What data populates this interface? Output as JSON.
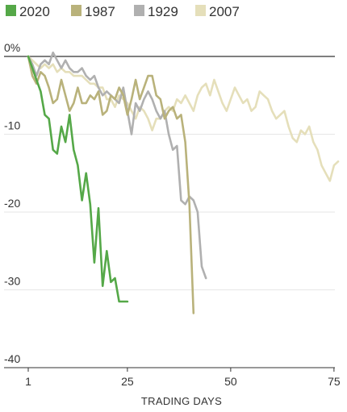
{
  "chart_data": {
    "type": "line",
    "xlabel": "TRADING DAYS",
    "ylabel": "",
    "xlim": [
      1,
      76
    ],
    "ylim": [
      -40,
      0
    ],
    "x_ticks": [
      "1",
      "25",
      "50",
      "75"
    ],
    "x_tick_values": [
      1,
      25,
      50,
      75
    ],
    "y_ticks": [
      "0%",
      "-10",
      "-20",
      "-30",
      "-40"
    ],
    "y_tick_values": [
      0,
      -10,
      -20,
      -30,
      -40
    ],
    "grid": true,
    "legend_position": "top-left",
    "series": [
      {
        "name": "2020",
        "color": "#55a848",
        "x": [
          1,
          2,
          3,
          4,
          5,
          6,
          7,
          8,
          9,
          10,
          11,
          12,
          13,
          14,
          15,
          16,
          17,
          18,
          19,
          20,
          21,
          22,
          23,
          24,
          25
        ],
        "y": [
          0,
          -1.5,
          -3,
          -4.5,
          -7.5,
          -8,
          -12,
          -12.5,
          -9,
          -11,
          -7.5,
          -12,
          -14,
          -18.5,
          -15,
          -19,
          -26.5,
          -19.5,
          -29.5,
          -25,
          -29,
          -28.5,
          -31.5,
          -31.5,
          -31.5
        ]
      },
      {
        "name": "1987",
        "color": "#b9b27b",
        "x": [
          1,
          2,
          3,
          4,
          5,
          6,
          7,
          8,
          9,
          10,
          11,
          12,
          13,
          14,
          15,
          16,
          17,
          18,
          19,
          20,
          21,
          22,
          23,
          24,
          25,
          26,
          27,
          28,
          29,
          30,
          31,
          32,
          33,
          34,
          35,
          36,
          37,
          38,
          39,
          40,
          41
        ],
        "y": [
          0,
          -2.5,
          -3.5,
          -2,
          -2.5,
          -4,
          -6,
          -5.5,
          -3,
          -5,
          -7,
          -6,
          -4,
          -6,
          -6,
          -5,
          -5.5,
          -4.5,
          -7.5,
          -7,
          -5,
          -5.5,
          -4,
          -5,
          -7.5,
          -5.5,
          -3,
          -5.5,
          -4,
          -2.5,
          -2.5,
          -5,
          -5.5,
          -8,
          -7,
          -6.5,
          -8,
          -7.5,
          -11,
          -19,
          -33
        ]
      },
      {
        "name": "1929",
        "color": "#b0b0b0",
        "x": [
          1,
          2,
          3,
          4,
          5,
          6,
          7,
          8,
          9,
          10,
          11,
          12,
          13,
          14,
          15,
          16,
          17,
          18,
          19,
          20,
          21,
          22,
          23,
          24,
          25,
          26,
          27,
          28,
          29,
          30,
          31,
          32,
          33,
          34,
          35,
          36,
          37,
          38,
          39,
          40,
          41,
          42,
          43,
          44
        ],
        "y": [
          0,
          -1,
          -2.5,
          -1,
          -0.5,
          -1,
          0.5,
          -0.5,
          -1.5,
          -0.5,
          -1.5,
          -2,
          -2,
          -1.5,
          -2.5,
          -3,
          -2.5,
          -4,
          -5,
          -4.5,
          -5,
          -5.5,
          -6,
          -4,
          -7,
          -10,
          -6,
          -7,
          -5.5,
          -4.5,
          -5.5,
          -7,
          -8,
          -7,
          -10,
          -12,
          -11.5,
          -18.5,
          -19,
          -18,
          -18.5,
          -20,
          -27,
          -28.5
        ]
      },
      {
        "name": "2007",
        "color": "#e5dfba",
        "x": [
          1,
          2,
          3,
          4,
          5,
          6,
          7,
          8,
          9,
          10,
          11,
          12,
          13,
          14,
          15,
          16,
          17,
          18,
          19,
          20,
          21,
          22,
          23,
          24,
          25,
          26,
          27,
          28,
          29,
          30,
          31,
          32,
          33,
          34,
          35,
          36,
          37,
          38,
          39,
          40,
          41,
          42,
          43,
          44,
          45,
          46,
          47,
          48,
          49,
          50,
          51,
          52,
          53,
          54,
          55,
          56,
          57,
          58,
          59,
          60,
          61,
          62,
          63,
          64,
          65,
          66,
          67,
          68,
          69,
          70,
          71,
          72,
          73,
          74,
          75,
          76
        ],
        "y": [
          0,
          -0.5,
          -1,
          -1.5,
          -1,
          -1.5,
          -1,
          -2,
          -1.5,
          -2,
          -2,
          -2.5,
          -2.5,
          -2.5,
          -3,
          -3.5,
          -3.5,
          -4,
          -4,
          -5.5,
          -5.5,
          -6.5,
          -5,
          -5.5,
          -6,
          -7,
          -8,
          -6.5,
          -7,
          -8,
          -9.5,
          -8,
          -8,
          -7,
          -6.5,
          -7,
          -5.5,
          -6,
          -5,
          -6,
          -7,
          -5,
          -4,
          -3.5,
          -5,
          -3,
          -4.5,
          -6,
          -7,
          -5.5,
          -4,
          -5,
          -6,
          -5.5,
          -7,
          -6.5,
          -4.5,
          -5,
          -5.5,
          -7,
          -8,
          -7.5,
          -7,
          -9,
          -10.5,
          -11,
          -9.5,
          -10,
          -9,
          -11,
          -12,
          -14,
          -15,
          -16,
          -14,
          -13.5
        ]
      }
    ]
  }
}
